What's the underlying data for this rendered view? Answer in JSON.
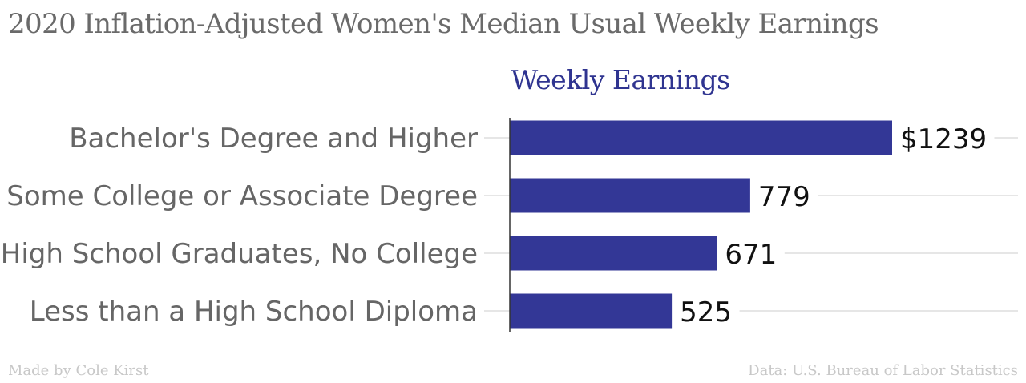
{
  "chart_data": {
    "type": "bar",
    "orientation": "horizontal",
    "title": "2020 Inflation-Adjusted Women's Median Usual Weekly Earnings",
    "series_title": "Weekly Earnings",
    "categories": [
      "Bachelor's Degree and Higher",
      "Some College or Associate Degree",
      "High School Graduates, No College",
      "Less than a High School Diploma"
    ],
    "values": [
      1239,
      779,
      671,
      525
    ],
    "value_labels": [
      "$1239",
      "779",
      "671",
      "525"
    ],
    "xlim": [
      0,
      1239
    ],
    "bar_color": "#333796",
    "title_color": "#6a6a6a",
    "series_title_color": "#2f3490",
    "gridlines": true,
    "legend": "none"
  },
  "footer": {
    "credit": "Made by Cole Kirst",
    "source": "Data: U.S. Bureau of Labor Statistics"
  }
}
